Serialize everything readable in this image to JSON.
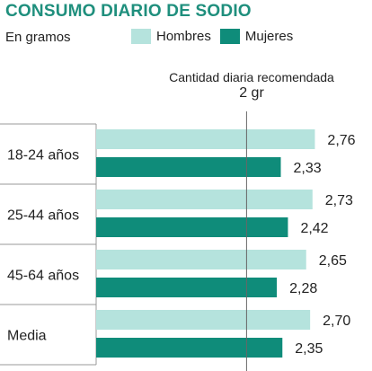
{
  "title": "CONSUMO DIARIO DE SODIO",
  "subtitle": "En gramos",
  "reference": {
    "label": "Cantidad diaria recomendada",
    "value_label": "2 gr",
    "value": 2
  },
  "colors": {
    "hombres": "#b5e3dd",
    "mujeres": "#0f8c7a",
    "title": "#1f8f7d",
    "grid": "#999999"
  },
  "chart_data": {
    "type": "bar",
    "orientation": "horizontal",
    "title": "CONSUMO DIARIO DE SODIO",
    "subtitle": "En gramos",
    "categories": [
      "18-24 años",
      "25-44 años",
      "45-64 años",
      "Media"
    ],
    "series": [
      {
        "name": "Hombres",
        "values": [
          2.76,
          2.73,
          2.65,
          2.7
        ],
        "labels": [
          "2,76",
          "2,73",
          "2,65",
          "2,70"
        ]
      },
      {
        "name": "Mujeres",
        "values": [
          2.33,
          2.42,
          2.28,
          2.35
        ],
        "labels": [
          "2,33",
          "2,42",
          "2,28",
          "2,35"
        ]
      }
    ],
    "legend": "top",
    "reference_line": 2
  }
}
